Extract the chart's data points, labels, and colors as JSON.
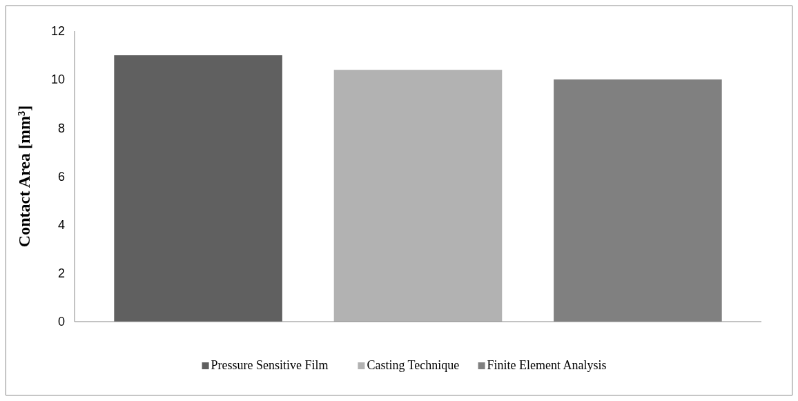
{
  "chart_data": {
    "type": "bar",
    "ylabel": "Contact Area [mm³]",
    "categories": [
      null
    ],
    "series": [
      {
        "name": "Pressure Sensitive Film",
        "color": "#606060",
        "values": [
          11.0
        ]
      },
      {
        "name": "Casting Technique",
        "color": "#b2b2b2",
        "values": [
          10.4
        ]
      },
      {
        "name": "Finite Element Analysis",
        "color": "#808080",
        "values": [
          10.0
        ]
      }
    ],
    "ylim": [
      0,
      12
    ],
    "yticks": [
      0,
      2,
      4,
      6,
      8,
      10,
      12
    ],
    "grid": false,
    "legend": "bottom"
  }
}
